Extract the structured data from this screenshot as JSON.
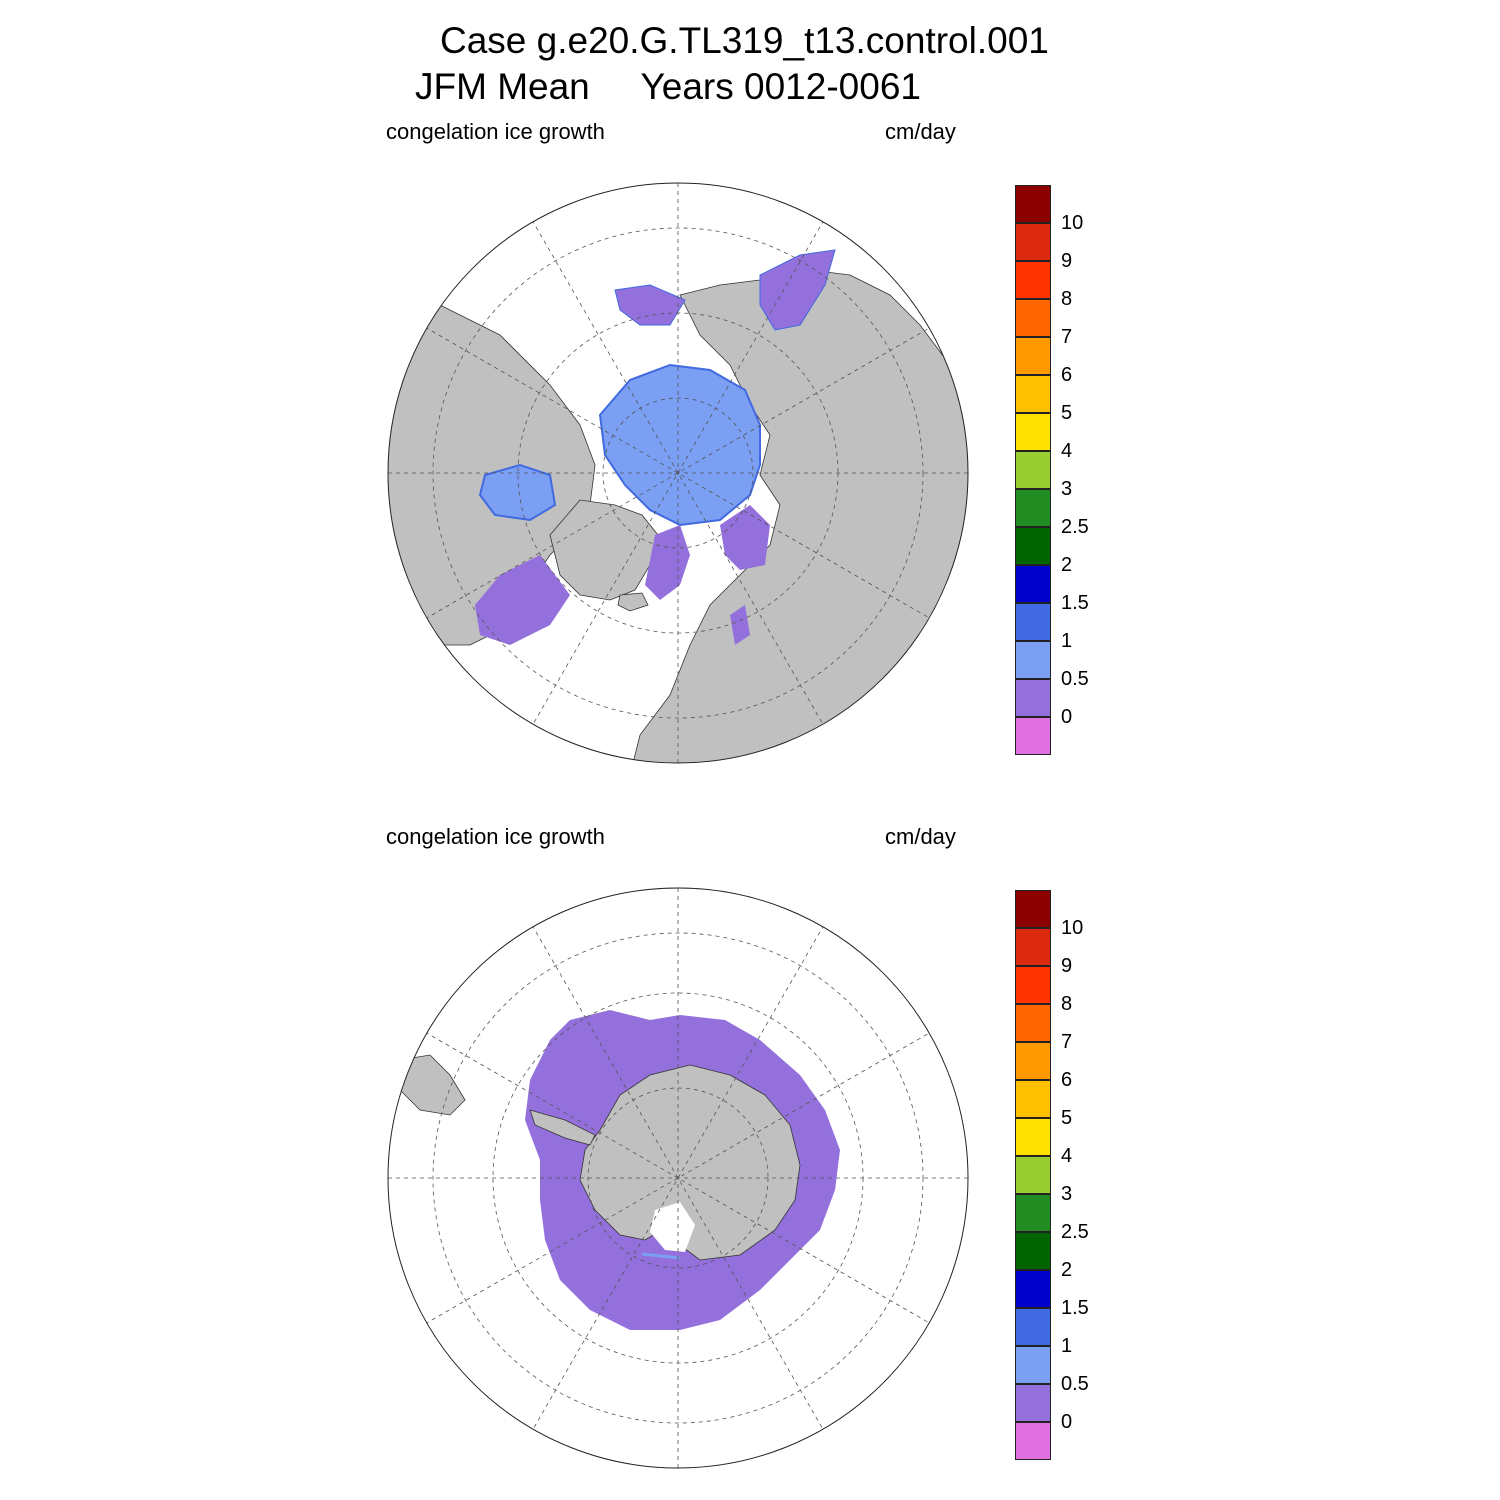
{
  "title": {
    "line1": "Case g.e20.G.TL319_t13.control.001",
    "line2": "JFM Mean     Years 0012-0061"
  },
  "panels": [
    {
      "id": "north",
      "hemisphere": "north",
      "variable": "congelation ice growth",
      "units": "cm/day"
    },
    {
      "id": "south",
      "hemisphere": "south",
      "variable": "congelation ice growth",
      "units": "cm/day"
    }
  ],
  "colorbar": {
    "colors": [
      "#e070e0",
      "#9370db",
      "#7b9ff2",
      "#4169e1",
      "#0000cd",
      "#006400",
      "#228b22",
      "#9acd32",
      "#ffe000",
      "#ffc000",
      "#ff9900",
      "#ff6600",
      "#ff3300",
      "#dc2a10",
      "#8b0000"
    ],
    "labels": [
      "0",
      "0.5",
      "1",
      "1.5",
      "2",
      "2.5",
      "3",
      "4",
      "5",
      "6",
      "7",
      "8",
      "9",
      "10"
    ]
  },
  "colors": {
    "land": "#c0c0c0",
    "ocean": "#ffffff",
    "ice_low": "#9370db",
    "ice_mid": "#7b9ff2",
    "ice_high": "#4169e1"
  }
}
